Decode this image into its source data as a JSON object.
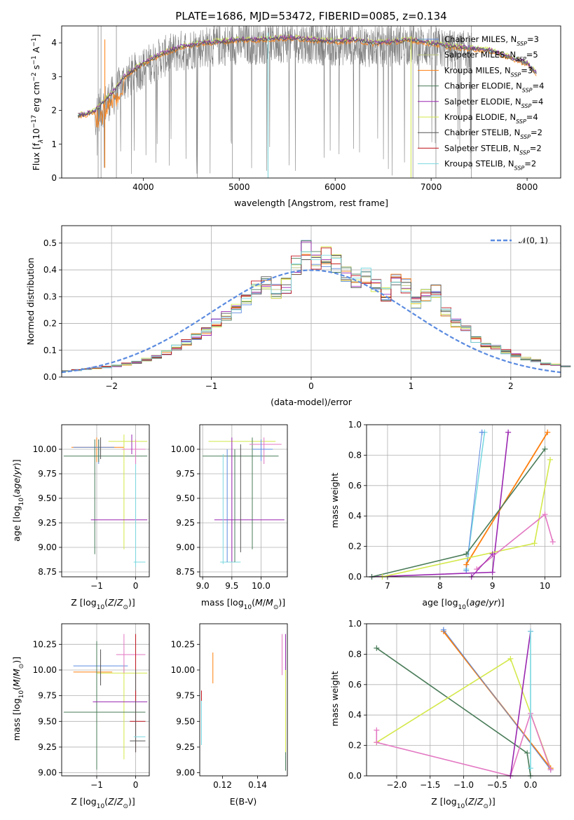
{
  "figure": {
    "title": "PLATE=1686, MJD=53472, FIBERID=0085, z=0.134",
    "series_names": [
      "Chabrier MILES, N_SSP=3",
      "Salpeter MILES, N_SSP=5",
      "Kroupa MILES, N_SSP=3",
      "Chabrier ELODIE, N_SSP=4",
      "Salpeter ELODIE, N_SSP=4",
      "Kroupa ELODIE, N_SSP=4",
      "Chabrier STELIB, N_SSP=2",
      "Salpeter STELIB, N_SSP=2",
      "Kroupa STELIB, N_SSP=2"
    ],
    "colors": {
      "chabrier_miles": "#5b8be0",
      "salpeter_miles": "#b8c27a",
      "kroupa_miles": "#ff7f0e",
      "chabrier_elodie": "#4a7c59",
      "salpeter_elodie": "#9a27b0",
      "kroupa_elodie": "#d4e84a",
      "chabrier_stelib": "#555555",
      "salpeter_stelib": "#c0141e",
      "kroupa_stelib": "#7ad8e0",
      "pink": "#e377c2",
      "gray_spectrum": "#7f7f7f",
      "normal_curve": "#5b8be0"
    }
  },
  "chart_data": [
    {
      "id": "spectrum",
      "type": "line",
      "xlabel": "wavelength [Angstrom, rest frame]",
      "ylabel": "Flux [f_λ 10^-17 erg cm^-2 s^-1 A^-1]",
      "xlim": [
        3150,
        8350
      ],
      "ylim": [
        0,
        4.5
      ],
      "xticks": [
        4000,
        5000,
        6000,
        7000,
        8000
      ],
      "yticks": [
        0,
        1,
        2,
        3,
        4
      ],
      "grid": false,
      "legend": "top-right",
      "continuum": {
        "x": [
          3320,
          3400,
          3500,
          3600,
          3700,
          3800,
          3900,
          4000,
          4200,
          4400,
          4600,
          4800,
          5000,
          5200,
          5400,
          5600,
          5800,
          6000,
          6200,
          6400,
          6600,
          6800,
          7000,
          7200,
          7400,
          7600,
          7800,
          8000,
          8100
        ],
        "y": [
          1.85,
          1.9,
          2.0,
          2.3,
          2.6,
          3.0,
          3.2,
          3.4,
          3.7,
          3.9,
          4.0,
          4.05,
          4.1,
          4.1,
          4.15,
          4.15,
          4.1,
          4.05,
          4.1,
          4.0,
          4.05,
          4.1,
          4.0,
          3.9,
          3.85,
          3.8,
          3.6,
          3.4,
          3.1
        ]
      },
      "data_x_range": [
        3500,
        7420
      ]
    },
    {
      "id": "residuals",
      "type": "line",
      "xlabel": "(data-model)/error",
      "ylabel": "Normed distribution",
      "xlim": [
        -2.5,
        2.5
      ],
      "ylim": [
        0,
        0.565
      ],
      "xticks": [
        -2,
        -1,
        0,
        1,
        2
      ],
      "yticks": [
        0.0,
        0.1,
        0.2,
        0.3,
        0.4,
        0.5
      ],
      "grid": true,
      "legend": "top-right",
      "legend_label": "𝒩(0, 1)",
      "bin_width": 0.1,
      "hist_base": [
        0.022,
        0.026,
        0.03,
        0.034,
        0.038,
        0.042,
        0.048,
        0.055,
        0.065,
        0.075,
        0.09,
        0.11,
        0.13,
        0.15,
        0.17,
        0.2,
        0.23,
        0.26,
        0.29,
        0.33,
        0.35,
        0.32,
        0.34,
        0.42,
        0.48,
        0.44,
        0.45,
        0.42,
        0.38,
        0.36,
        0.38,
        0.34,
        0.31,
        0.36,
        0.34,
        0.28,
        0.3,
        0.32,
        0.25,
        0.2,
        0.18,
        0.14,
        0.12,
        0.11,
        0.095,
        0.08,
        0.07,
        0.06,
        0.05,
        0.045,
        0.04
      ]
    },
    {
      "id": "age_vs_Z",
      "type": "scatter",
      "xlabel": "Z [log10(Z/Z⊙)]",
      "ylabel": "age  [log10(age/yr)]",
      "xlim": [
        -1.9,
        0.35
      ],
      "ylim": [
        8.7,
        10.25
      ],
      "xticks": [
        -1,
        0
      ],
      "yticks": [
        8.75,
        9.0,
        9.25,
        9.5,
        9.75,
        10.0
      ],
      "grid": true
    },
    {
      "id": "age_vs_mass",
      "type": "scatter",
      "xlabel": "mass [log10(M/M⊙)]",
      "ylabel": "",
      "xlim": [
        8.95,
        10.45
      ],
      "ylim": [
        8.7,
        10.25
      ],
      "xticks": [
        9.0,
        9.5,
        10.0
      ],
      "yticks": [
        8.75,
        9.0,
        9.25,
        9.5,
        9.75,
        10.0
      ],
      "grid": true
    },
    {
      "id": "weight_vs_age",
      "type": "line",
      "xlabel": "age  [log10(age/yr)]",
      "ylabel": "mass weight",
      "xlim": [
        6.6,
        10.3
      ],
      "ylim": [
        0,
        1.0
      ],
      "xticks": [
        7,
        8,
        9,
        10
      ],
      "yticks": [
        0.0,
        0.2,
        0.4,
        0.6,
        0.8,
        1.0
      ],
      "grid": true
    },
    {
      "id": "mass_vs_Z",
      "type": "scatter",
      "xlabel": "Z [log10(Z/Z⊙)]",
      "ylabel": "mass [log10(M/M⊙)]",
      "xlim": [
        -1.9,
        0.35
      ],
      "ylim": [
        8.97,
        10.45
      ],
      "xticks": [
        -1,
        0
      ],
      "yticks": [
        9.0,
        9.25,
        9.5,
        9.75,
        10.0,
        10.25
      ],
      "grid": true
    },
    {
      "id": "mass_vs_ebv",
      "type": "scatter",
      "xlabel": "E(B-V)",
      "ylabel": "",
      "xlim": [
        0.107,
        0.157
      ],
      "ylim": [
        8.97,
        10.45
      ],
      "xticks": [
        0.12,
        0.14
      ],
      "yticks": [
        9.0,
        9.25,
        9.5,
        9.75,
        10.0,
        10.25
      ],
      "grid": false
    },
    {
      "id": "weight_vs_Z",
      "type": "line",
      "xlabel": "Z [log10(Z/Z⊙)]",
      "ylabel": "mass weight",
      "xlim": [
        -2.45,
        0.45
      ],
      "ylim": [
        0,
        1.0
      ],
      "xticks": [
        -2.0,
        -1.5,
        -1.0,
        -0.5,
        0.0
      ],
      "yticks": [
        0.0,
        0.2,
        0.4,
        0.6,
        0.8,
        1.0
      ],
      "grid": true
    }
  ]
}
